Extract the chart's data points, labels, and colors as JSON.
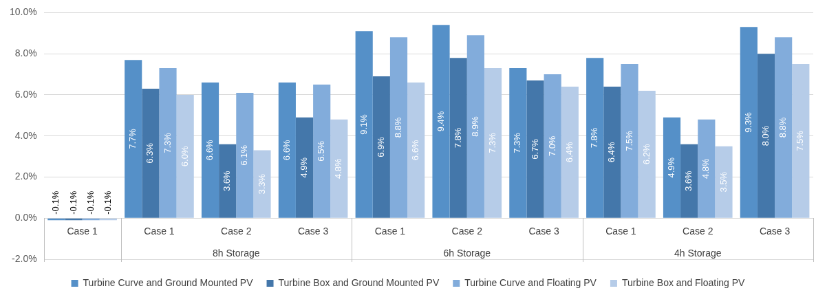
{
  "chart_data": {
    "type": "bar",
    "categories": [
      "Case 1",
      "Case 1",
      "Case 2",
      "Case 3",
      "Case 1",
      "Case 2",
      "Case 3",
      "Case 1",
      "Case 2",
      "Case 3"
    ],
    "annotations": [
      "8h Storage",
      "6h Storage",
      "4h Storage"
    ],
    "series": [
      {
        "name": "Turbine Curve and Ground Mounted PV",
        "color": "#5590c8",
        "values": [
          -0.1,
          7.7,
          6.6,
          6.6,
          9.1,
          9.4,
          7.3,
          7.8,
          4.9,
          9.3
        ],
        "value_labels": [
          "-0.1%",
          "7.7%",
          "6.6%",
          "6.6%",
          "9.1%",
          "9.4%",
          "7.3%",
          "7.8%",
          "4.9%",
          "9.3%"
        ]
      },
      {
        "name": "Turbine Box and Ground Mounted PV",
        "color": "#4477aa",
        "values": [
          -0.1,
          6.3,
          3.6,
          4.9,
          6.9,
          7.8,
          6.7,
          6.4,
          3.6,
          8.0
        ],
        "value_labels": [
          "-0.1%",
          "6.3%",
          "3.6%",
          "4.9%",
          "6.9%",
          "7.8%",
          "6.7%",
          "6.4%",
          "3.6%",
          "8.0%"
        ]
      },
      {
        "name": "Turbine Curve and Floating PV",
        "color": "#82acdb",
        "values": [
          -0.1,
          7.3,
          6.1,
          6.5,
          8.8,
          8.9,
          7.0,
          7.5,
          4.8,
          8.8
        ],
        "value_labels": [
          "-0.1%",
          "7.3%",
          "6.1%",
          "6.5%",
          "8.8%",
          "8.9%",
          "7.0%",
          "7.5%",
          "4.8%",
          "8.8%"
        ]
      },
      {
        "name": "Turbine Box and Floating PV",
        "color": "#b6cce8",
        "values": [
          -0.1,
          6.0,
          3.3,
          4.8,
          6.6,
          7.3,
          6.4,
          6.2,
          3.5,
          7.5
        ],
        "value_labels": [
          "-0.1%",
          "6.0%",
          "3.3%",
          "4.8%",
          "6.6%",
          "7.3%",
          "6.4%",
          "6.2%",
          "3.5%",
          "7.5%"
        ]
      }
    ],
    "ylim": [
      -2,
      10
    ],
    "yticks": [
      {
        "value": -2,
        "label": "-2.0%"
      },
      {
        "value": 0,
        "label": "0.0%"
      },
      {
        "value": 2,
        "label": "2.0%"
      },
      {
        "value": 4,
        "label": "4.0%"
      },
      {
        "value": 6,
        "label": "6.0%"
      },
      {
        "value": 8,
        "label": "8.0%"
      },
      {
        "value": 10,
        "label": "10.0%"
      }
    ],
    "grid": "y",
    "legend": "bottom"
  }
}
